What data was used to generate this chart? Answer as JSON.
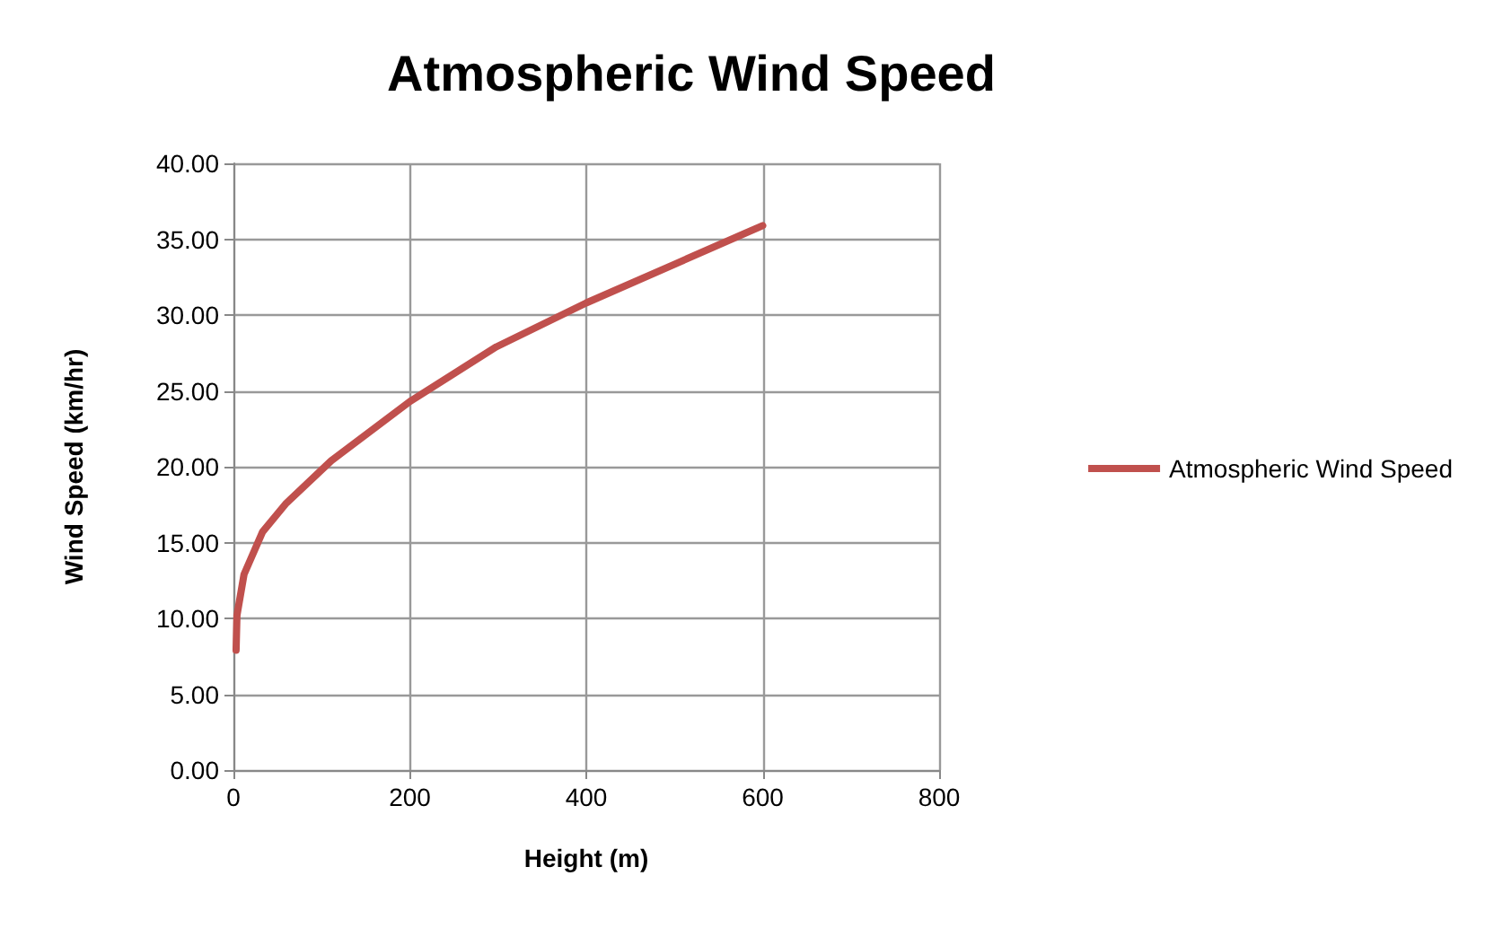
{
  "chart_data": {
    "type": "line",
    "title": "Atmospheric Wind Speed",
    "xlabel": "Height (m)",
    "ylabel": "Wind Speed (km/hr)",
    "x": [
      3,
      4,
      12,
      33,
      60,
      111,
      200,
      298,
      400,
      502,
      600
    ],
    "series": [
      {
        "name": "Atmospheric Wind Speed",
        "color": "#c0504d",
        "values": [
          7.9,
          10.2,
          12.9,
          15.7,
          17.6,
          20.4,
          24.3,
          27.9,
          30.8,
          33.4,
          35.9
        ]
      }
    ],
    "xlim": [
      0,
      800
    ],
    "xticks": [
      0,
      200,
      400,
      600,
      800
    ],
    "ylim": [
      0,
      40
    ],
    "yticks": [
      {
        "value": 0,
        "label": "0.00"
      },
      {
        "value": 5,
        "label": "5.00"
      },
      {
        "value": 10,
        "label": "10.00"
      },
      {
        "value": 15,
        "label": "15.00"
      },
      {
        "value": 20,
        "label": "20.00"
      },
      {
        "value": 25,
        "label": "25.00"
      },
      {
        "value": 30,
        "label": "30.00"
      },
      {
        "value": 35,
        "label": "35.00"
      },
      {
        "value": 40,
        "label": "40.00"
      }
    ],
    "grid": true,
    "legend": "right",
    "marker": "none",
    "line_style": "solid"
  }
}
